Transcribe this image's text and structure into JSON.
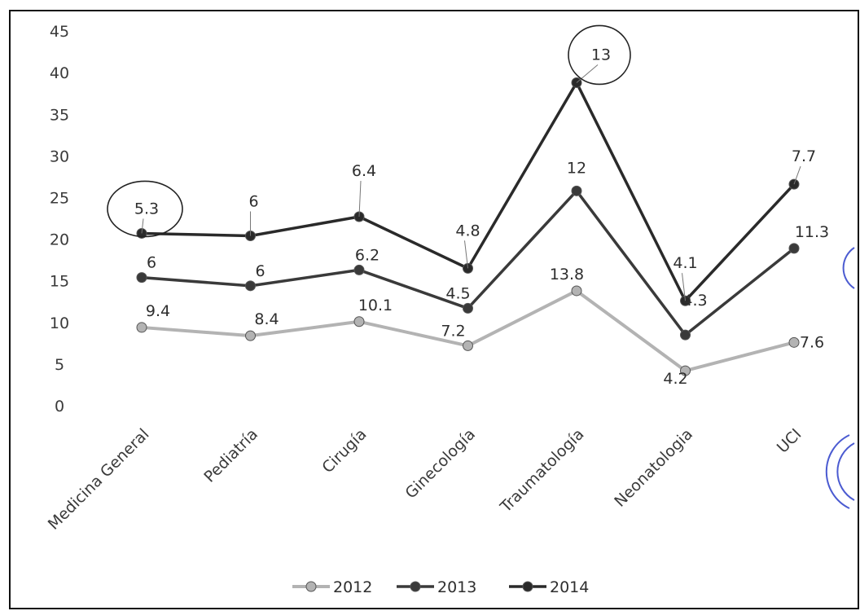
{
  "chart_data": {
    "type": "line",
    "categories": [
      "Medicina General",
      "Pediatría",
      "Cirugía",
      "Ginecología",
      "Traumatología",
      "Neonatologia",
      "UCI"
    ],
    "series": [
      {
        "name": "2012",
        "values": [
          9.4,
          8.4,
          10.1,
          7.2,
          13.8,
          4.2,
          7.6
        ],
        "labels": [
          "9.4",
          "8.4",
          "10.1",
          "7.2",
          "13.8",
          "4.2",
          "7.6"
        ],
        "color": "#b3b3b3"
      },
      {
        "name": "2013",
        "values": [
          6,
          6,
          6.2,
          4.5,
          12,
          4.3,
          11.3
        ],
        "labels": [
          "6",
          "6",
          "6.2",
          "4.5",
          "12",
          "4.3",
          "11.3"
        ],
        "color": "#3a3a3a"
      },
      {
        "name": "2014",
        "values": [
          5.3,
          6,
          6.4,
          4.8,
          13,
          4.1,
          7.7
        ],
        "labels": [
          "5.3",
          "6",
          "6.4",
          "4.8",
          "13",
          "4.1",
          "7.7"
        ],
        "color": "#2a2a2a"
      }
    ],
    "stacked": true,
    "ylim": [
      0,
      45
    ],
    "yticks": [
      "0",
      "5",
      "10",
      "15",
      "20",
      "25",
      "30",
      "35",
      "40",
      "45"
    ],
    "legend_position": "bottom",
    "grid": false,
    "annotations": [
      "circle around 5.3 (Medicina General, 2014)",
      "circle around 13 (Traumatología, 2014)"
    ]
  }
}
